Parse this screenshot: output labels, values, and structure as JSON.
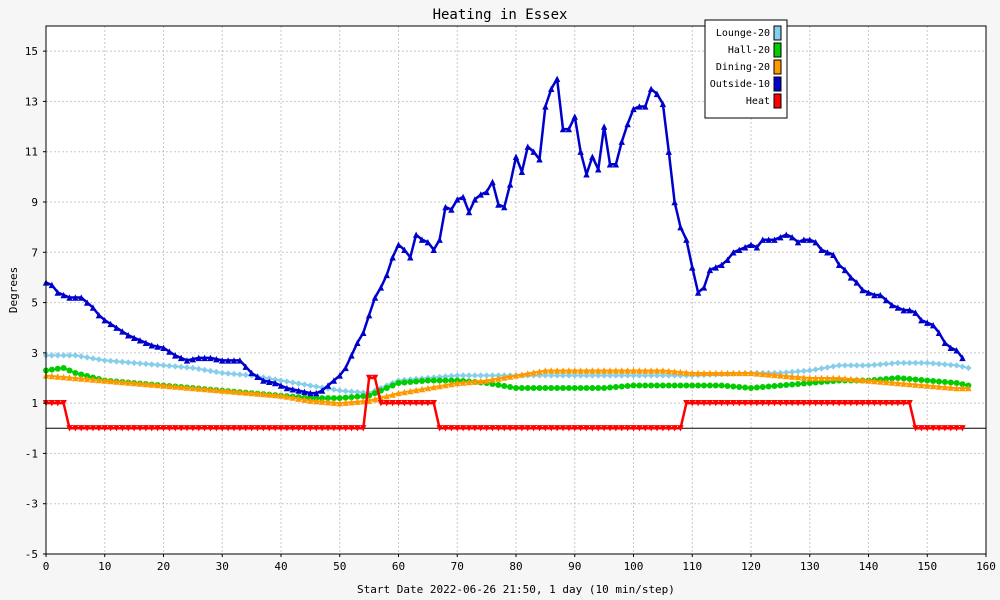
{
  "chart_data": {
    "type": "line",
    "title": "Heating in Essex",
    "xlabel": "Start Date 2022-06-26 21:50, 1 day (10 min/step)",
    "ylabel": "Degrees",
    "xlim": [
      0,
      160
    ],
    "ylim": [
      -5,
      16
    ],
    "xticks": [
      0,
      10,
      20,
      30,
      40,
      50,
      60,
      70,
      80,
      90,
      100,
      110,
      120,
      130,
      140,
      150,
      160
    ],
    "yticks": [
      -5,
      -3,
      -1,
      1,
      3,
      5,
      7,
      9,
      11,
      13,
      15
    ],
    "grid": true,
    "legend_position": "top-right",
    "series": [
      {
        "name": "Lounge-20",
        "color": "#87ceeb",
        "marker": "diamond",
        "points": [
          [
            0,
            2.9
          ],
          [
            5,
            2.9
          ],
          [
            10,
            2.7
          ],
          [
            15,
            2.6
          ],
          [
            20,
            2.5
          ],
          [
            25,
            2.4
          ],
          [
            30,
            2.2
          ],
          [
            35,
            2.1
          ],
          [
            40,
            1.9
          ],
          [
            45,
            1.7
          ],
          [
            50,
            1.5
          ],
          [
            55,
            1.4
          ],
          [
            60,
            1.9
          ],
          [
            65,
            2.0
          ],
          [
            70,
            2.1
          ],
          [
            75,
            2.1
          ],
          [
            80,
            2.1
          ],
          [
            90,
            2.1
          ],
          [
            100,
            2.1
          ],
          [
            110,
            2.1
          ],
          [
            120,
            2.2
          ],
          [
            125,
            2.2
          ],
          [
            130,
            2.3
          ],
          [
            135,
            2.5
          ],
          [
            140,
            2.5
          ],
          [
            145,
            2.6
          ],
          [
            150,
            2.6
          ],
          [
            155,
            2.5
          ],
          [
            157,
            2.4
          ]
        ]
      },
      {
        "name": "Hall-20",
        "color": "#00cc00",
        "marker": "circle",
        "points": [
          [
            0,
            2.3
          ],
          [
            3,
            2.4
          ],
          [
            5,
            2.2
          ],
          [
            10,
            1.9
          ],
          [
            15,
            1.8
          ],
          [
            20,
            1.7
          ],
          [
            25,
            1.6
          ],
          [
            30,
            1.5
          ],
          [
            35,
            1.4
          ],
          [
            40,
            1.3
          ],
          [
            45,
            1.2
          ],
          [
            50,
            1.2
          ],
          [
            55,
            1.3
          ],
          [
            60,
            1.8
          ],
          [
            65,
            1.9
          ],
          [
            70,
            1.9
          ],
          [
            75,
            1.8
          ],
          [
            80,
            1.6
          ],
          [
            85,
            1.6
          ],
          [
            90,
            1.6
          ],
          [
            95,
            1.6
          ],
          [
            100,
            1.7
          ],
          [
            105,
            1.7
          ],
          [
            110,
            1.7
          ],
          [
            115,
            1.7
          ],
          [
            120,
            1.6
          ],
          [
            125,
            1.7
          ],
          [
            130,
            1.8
          ],
          [
            135,
            1.9
          ],
          [
            140,
            1.9
          ],
          [
            145,
            2.0
          ],
          [
            150,
            1.9
          ],
          [
            155,
            1.8
          ],
          [
            157,
            1.7
          ]
        ]
      },
      {
        "name": "Dining-20",
        "color": "#ff9900",
        "marker": "triangle-up",
        "points": [
          [
            0,
            2.1
          ],
          [
            5,
            2.0
          ],
          [
            10,
            1.9
          ],
          [
            15,
            1.8
          ],
          [
            20,
            1.7
          ],
          [
            25,
            1.6
          ],
          [
            30,
            1.5
          ],
          [
            35,
            1.4
          ],
          [
            40,
            1.3
          ],
          [
            45,
            1.1
          ],
          [
            50,
            1.0
          ],
          [
            55,
            1.1
          ],
          [
            60,
            1.4
          ],
          [
            65,
            1.6
          ],
          [
            70,
            1.8
          ],
          [
            75,
            1.9
          ],
          [
            80,
            2.1
          ],
          [
            85,
            2.3
          ],
          [
            90,
            2.3
          ],
          [
            95,
            2.3
          ],
          [
            100,
            2.3
          ],
          [
            105,
            2.3
          ],
          [
            110,
            2.2
          ],
          [
            115,
            2.2
          ],
          [
            120,
            2.2
          ],
          [
            125,
            2.1
          ],
          [
            130,
            2.0
          ],
          [
            135,
            2.0
          ],
          [
            140,
            1.9
          ],
          [
            145,
            1.8
          ],
          [
            150,
            1.7
          ],
          [
            155,
            1.6
          ],
          [
            157,
            1.6
          ]
        ]
      },
      {
        "name": "Outside-10",
        "color": "#0000cc",
        "marker": "triangle-up",
        "points": [
          [
            0,
            5.8
          ],
          [
            1,
            5.7
          ],
          [
            2,
            5.4
          ],
          [
            3,
            5.3
          ],
          [
            4,
            5.2
          ],
          [
            5,
            5.2
          ],
          [
            6,
            5.2
          ],
          [
            7,
            5.0
          ],
          [
            8,
            4.8
          ],
          [
            9,
            4.5
          ],
          [
            10,
            4.3
          ],
          [
            12,
            4.0
          ],
          [
            14,
            3.7
          ],
          [
            16,
            3.5
          ],
          [
            18,
            3.3
          ],
          [
            20,
            3.2
          ],
          [
            22,
            2.9
          ],
          [
            24,
            2.7
          ],
          [
            26,
            2.8
          ],
          [
            28,
            2.8
          ],
          [
            30,
            2.7
          ],
          [
            32,
            2.7
          ],
          [
            33,
            2.7
          ],
          [
            35,
            2.2
          ],
          [
            37,
            1.9
          ],
          [
            39,
            1.8
          ],
          [
            41,
            1.6
          ],
          [
            43,
            1.5
          ],
          [
            45,
            1.4
          ],
          [
            46,
            1.4
          ],
          [
            47,
            1.5
          ],
          [
            48,
            1.7
          ],
          [
            50,
            2.1
          ],
          [
            51,
            2.4
          ],
          [
            52,
            2.9
          ],
          [
            53,
            3.4
          ],
          [
            54,
            3.8
          ],
          [
            55,
            4.5
          ],
          [
            56,
            5.2
          ],
          [
            57,
            5.6
          ],
          [
            58,
            6.1
          ],
          [
            59,
            6.8
          ],
          [
            60,
            7.3
          ],
          [
            61,
            7.1
          ],
          [
            62,
            6.8
          ],
          [
            63,
            7.7
          ],
          [
            64,
            7.5
          ],
          [
            65,
            7.4
          ],
          [
            66,
            7.1
          ],
          [
            67,
            7.5
          ],
          [
            68,
            8.8
          ],
          [
            69,
            8.7
          ],
          [
            70,
            9.1
          ],
          [
            71,
            9.2
          ],
          [
            72,
            8.6
          ],
          [
            73,
            9.1
          ],
          [
            74,
            9.3
          ],
          [
            75,
            9.4
          ],
          [
            76,
            9.8
          ],
          [
            77,
            8.9
          ],
          [
            78,
            8.8
          ],
          [
            79,
            9.7
          ],
          [
            80,
            10.8
          ],
          [
            81,
            10.2
          ],
          [
            82,
            11.2
          ],
          [
            83,
            11.0
          ],
          [
            84,
            10.7
          ],
          [
            85,
            12.8
          ],
          [
            86,
            13.5
          ],
          [
            87,
            13.9
          ],
          [
            88,
            11.9
          ],
          [
            89,
            11.9
          ],
          [
            90,
            12.4
          ],
          [
            91,
            11.0
          ],
          [
            92,
            10.1
          ],
          [
            93,
            10.8
          ],
          [
            94,
            10.3
          ],
          [
            95,
            12.0
          ],
          [
            96,
            10.5
          ],
          [
            97,
            10.5
          ],
          [
            98,
            11.4
          ],
          [
            99,
            12.1
          ],
          [
            100,
            12.7
          ],
          [
            101,
            12.8
          ],
          [
            102,
            12.8
          ],
          [
            103,
            13.5
          ],
          [
            104,
            13.3
          ],
          [
            105,
            12.9
          ],
          [
            106,
            11.0
          ],
          [
            107,
            9.0
          ],
          [
            108,
            8.0
          ],
          [
            109,
            7.5
          ],
          [
            110,
            6.4
          ],
          [
            111,
            5.4
          ],
          [
            112,
            5.6
          ],
          [
            113,
            6.3
          ],
          [
            114,
            6.4
          ],
          [
            115,
            6.5
          ],
          [
            116,
            6.7
          ],
          [
            117,
            7.0
          ],
          [
            118,
            7.1
          ],
          [
            119,
            7.2
          ],
          [
            120,
            7.3
          ],
          [
            121,
            7.2
          ],
          [
            122,
            7.5
          ],
          [
            123,
            7.5
          ],
          [
            124,
            7.5
          ],
          [
            125,
            7.6
          ],
          [
            126,
            7.7
          ],
          [
            127,
            7.6
          ],
          [
            128,
            7.4
          ],
          [
            129,
            7.5
          ],
          [
            130,
            7.5
          ],
          [
            131,
            7.4
          ],
          [
            132,
            7.1
          ],
          [
            133,
            7.0
          ],
          [
            134,
            6.9
          ],
          [
            135,
            6.5
          ],
          [
            136,
            6.3
          ],
          [
            137,
            6.0
          ],
          [
            138,
            5.8
          ],
          [
            139,
            5.5
          ],
          [
            140,
            5.4
          ],
          [
            141,
            5.3
          ],
          [
            142,
            5.3
          ],
          [
            143,
            5.1
          ],
          [
            144,
            4.9
          ],
          [
            145,
            4.8
          ],
          [
            146,
            4.7
          ],
          [
            147,
            4.7
          ],
          [
            148,
            4.6
          ],
          [
            149,
            4.3
          ],
          [
            150,
            4.2
          ],
          [
            151,
            4.1
          ],
          [
            152,
            3.8
          ],
          [
            153,
            3.4
          ],
          [
            154,
            3.2
          ],
          [
            155,
            3.1
          ],
          [
            156,
            2.8
          ]
        ]
      },
      {
        "name": "Heat",
        "color": "#ff0000",
        "marker": "triangle-down",
        "points": [
          [
            0,
            1
          ],
          [
            1,
            1
          ],
          [
            2,
            1
          ],
          [
            3,
            1
          ],
          [
            4,
            0
          ],
          [
            10,
            0
          ],
          [
            20,
            0
          ],
          [
            30,
            0
          ],
          [
            40,
            0
          ],
          [
            50,
            0
          ],
          [
            53,
            0
          ],
          [
            54,
            0
          ],
          [
            55,
            2
          ],
          [
            56,
            2
          ],
          [
            57,
            1
          ],
          [
            60,
            1
          ],
          [
            64,
            1
          ],
          [
            66,
            1
          ],
          [
            67,
            0
          ],
          [
            70,
            0
          ],
          [
            80,
            0
          ],
          [
            90,
            0
          ],
          [
            100,
            0
          ],
          [
            108,
            0
          ],
          [
            109,
            1
          ],
          [
            110,
            1
          ],
          [
            120,
            1
          ],
          [
            130,
            1
          ],
          [
            140,
            1
          ],
          [
            147,
            1
          ],
          [
            148,
            0
          ],
          [
            150,
            0
          ],
          [
            156,
            0
          ]
        ]
      }
    ]
  }
}
